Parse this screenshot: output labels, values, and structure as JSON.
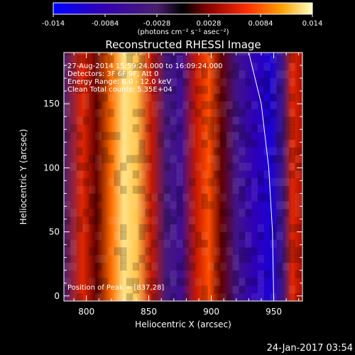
{
  "chart_data": {
    "type": "heatmap",
    "title": "Reconstructed RHESSI Image",
    "xlabel": "Heliocentric X (arcsec)",
    "ylabel": "Heliocentric Y (arcsec)",
    "xlim": [
      782,
      973
    ],
    "ylim": [
      -4,
      190
    ],
    "x_ticks": [
      800,
      850,
      900,
      950
    ],
    "y_ticks": [
      0,
      50,
      100,
      150
    ],
    "colorbar": {
      "min": -0.014,
      "max": 0.014,
      "ticks": [
        "-0.014",
        "-0.0084",
        "-0.0028",
        "0.0028",
        "0.0084",
        "0.014"
      ],
      "unit_label": "(photons cm⁻² s⁻¹ asec⁻²)"
    },
    "annotations": [
      "27-Aug-2014 15:59:24.000 to 16:09:24.000",
      "Detectors: 3F 6F 9F, Att 0",
      "Energy Range: 6.0 - 12.0 keV",
      "Clean   Total counts: 5.35E+04"
    ],
    "position_label": "Position of Peak = [837,28]",
    "peak": [
      837,
      28
    ],
    "limb_curve": [
      [
        930,
        190
      ],
      [
        940,
        150
      ],
      [
        946,
        100
      ],
      [
        949,
        50
      ],
      [
        950,
        -4
      ]
    ],
    "bands": [
      {
        "x": 782,
        "v": -0.003
      },
      {
        "x": 797,
        "v": 0.006
      },
      {
        "x": 808,
        "v": 0.002
      },
      {
        "x": 820,
        "v": 0.009
      },
      {
        "x": 830,
        "v": 0.013
      },
      {
        "x": 840,
        "v": 0.012
      },
      {
        "x": 852,
        "v": 0.005
      },
      {
        "x": 864,
        "v": -0.004
      },
      {
        "x": 876,
        "v": -0.006
      },
      {
        "x": 888,
        "v": 0.005
      },
      {
        "x": 898,
        "v": 0.008
      },
      {
        "x": 908,
        "v": 0.002
      },
      {
        "x": 920,
        "v": -0.005
      },
      {
        "x": 935,
        "v": -0.009
      },
      {
        "x": 948,
        "v": -0.011
      },
      {
        "x": 958,
        "v": -0.004
      },
      {
        "x": 965,
        "v": 0.006
      },
      {
        "x": 973,
        "v": 0.004
      }
    ]
  },
  "footer_date": "24-Jan-2017 03:54"
}
